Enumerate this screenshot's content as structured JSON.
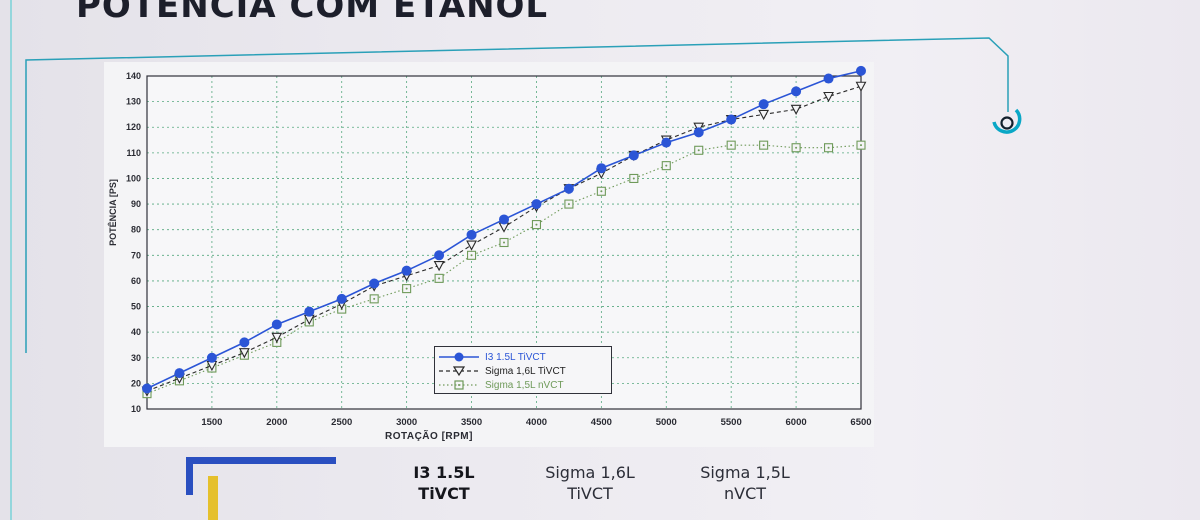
{
  "slide": {
    "title": "POTÊNCIA COM ETANOL"
  },
  "colors": {
    "i3_series": "#2b55d6",
    "sigma16_series": "#2a2a2a",
    "sigma15_series": "#6f9a5a",
    "accent_teal": "#0aa7c6",
    "grid": "#56a87f",
    "brand_blue": "#2a4fc0",
    "brand_yellow": "#e5c02c"
  },
  "chart_data": {
    "type": "line",
    "title": "",
    "xlabel": "ROTAÇÃO [RPM]",
    "ylabel": "POTÊNCIA [PS]",
    "xlim": [
      1000,
      6500
    ],
    "ylim": [
      10,
      140
    ],
    "xticks": [
      1500,
      2000,
      2500,
      3000,
      3500,
      4000,
      4500,
      5000,
      5500,
      6000,
      6500
    ],
    "yticks": [
      10,
      20,
      30,
      40,
      50,
      60,
      70,
      80,
      90,
      100,
      110,
      120,
      130,
      140
    ],
    "grid": true,
    "legend_position": "lower-right",
    "x": [
      1000,
      1250,
      1500,
      1750,
      2000,
      2250,
      2500,
      2750,
      3000,
      3250,
      3500,
      3750,
      4000,
      4250,
      4500,
      4750,
      5000,
      5250,
      5500,
      5750,
      6000,
      6250,
      6500
    ],
    "series": [
      {
        "name": "I3 1.5L TiVCT",
        "marker": "filled-circle",
        "line": "solid",
        "values": [
          18,
          24,
          30,
          36,
          43,
          48,
          53,
          59,
          64,
          70,
          78,
          84,
          90,
          96,
          104,
          109,
          114,
          118,
          123,
          129,
          134,
          139,
          142
        ]
      },
      {
        "name": "Sigma 1,6L TiVCT",
        "marker": "down-triangle",
        "line": "dashed",
        "values": [
          17,
          22,
          27,
          32,
          38,
          45,
          51,
          58,
          62,
          66,
          74,
          81,
          89,
          96,
          102,
          109,
          115,
          120,
          123,
          125,
          127,
          132,
          136
        ]
      },
      {
        "name": "Sigma 1,5L nVCT",
        "marker": "square-dot",
        "line": "dotted",
        "values": [
          16,
          21,
          26,
          31,
          36,
          44,
          49,
          53,
          57,
          61,
          70,
          75,
          82,
          90,
          95,
          100,
          105,
          111,
          113,
          113,
          112,
          112,
          113
        ]
      }
    ]
  },
  "legend": {
    "i3": "I3 1.5L TiVCT",
    "sigma16": "Sigma 1,6L TiVCT",
    "sigma15": "Sigma 1,5L nVCT"
  },
  "bottom_labels": {
    "i3_line1": "I3 1.5L",
    "i3_line2": "TiVCT",
    "sigma16_line1": "Sigma 1,6L",
    "sigma16_line2": "TiVCT",
    "sigma15_line1": "Sigma 1,5L",
    "sigma15_line2": "nVCT"
  }
}
